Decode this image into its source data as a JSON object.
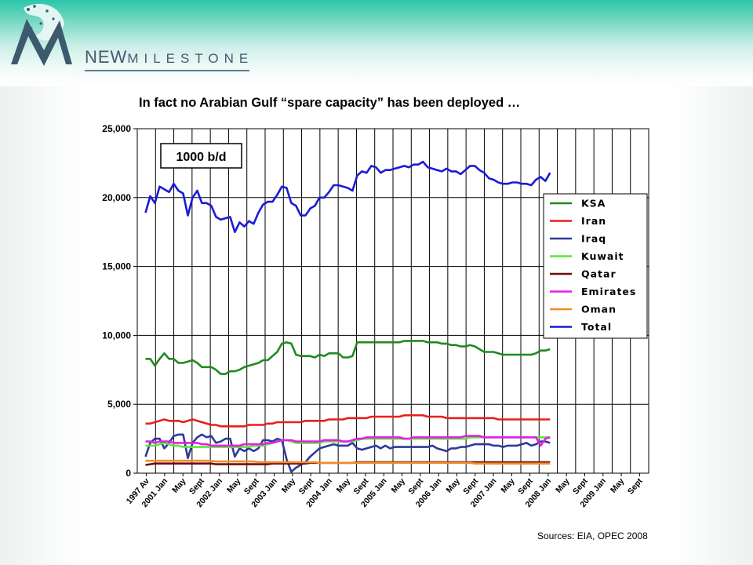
{
  "brand": {
    "part1": "NEW",
    "part2": "MILESTONE"
  },
  "source": "Sources: EIA, OPEC 2008",
  "chart_data": {
    "type": "line",
    "title": "In fact no Arabian Gulf “spare capacity” has been deployed …",
    "unit_label": "1000 b/d",
    "ylim": [
      0,
      25000
    ],
    "yticks": [
      "0",
      "5,000",
      "10,000",
      "15,000",
      "20,000",
      "25,000"
    ],
    "x_labels": [
      "1997 Av",
      "2001 Jan",
      "May",
      "Sept",
      "2002 Jan",
      "May",
      "Sept",
      "2003 Jan",
      "May",
      "Sept",
      "2004 Jan",
      "May",
      "Sept",
      "2005 Jan",
      "May",
      "Sept",
      "2006 Jan",
      "May",
      "Sept",
      "2007 Jan",
      "May",
      "Sept",
      "2008 Jan",
      "May",
      "Sept",
      "2009 Jan",
      "May",
      "Sept"
    ],
    "grid": "vertical and horizontal",
    "legend_position": "right",
    "series": [
      {
        "name": "KSA",
        "color": "#1f8a1f",
        "values": [
          8300,
          8300,
          7800,
          8300,
          8700,
          8300,
          8300,
          8000,
          8000,
          8100,
          8200,
          8000,
          7700,
          7700,
          7700,
          7500,
          7200,
          7200,
          7400,
          7400,
          7500,
          7700,
          7800,
          7900,
          8000,
          8200,
          8200,
          8500,
          8800,
          9400,
          9500,
          9400,
          8600,
          8500,
          8500,
          8500,
          8400,
          8600,
          8500,
          8700,
          8700,
          8700,
          8400,
          8400,
          8500,
          9500,
          9500,
          9500,
          9500,
          9500,
          9500,
          9500,
          9500,
          9500,
          9500,
          9600,
          9600,
          9600,
          9600,
          9600,
          9500,
          9500,
          9500,
          9400,
          9400,
          9300,
          9300,
          9200,
          9200,
          9300,
          9200,
          9000,
          8800,
          8800,
          8800,
          8700,
          8600,
          8600,
          8600,
          8600,
          8600,
          8600,
          8600,
          8700,
          8900,
          8900,
          9000
        ]
      },
      {
        "name": "Iran",
        "color": "#e81e1e",
        "values": [
          3600,
          3600,
          3700,
          3800,
          3900,
          3800,
          3800,
          3800,
          3700,
          3800,
          3900,
          3800,
          3700,
          3600,
          3500,
          3500,
          3400,
          3400,
          3400,
          3400,
          3400,
          3400,
          3500,
          3500,
          3500,
          3500,
          3600,
          3600,
          3700,
          3700,
          3700,
          3700,
          3700,
          3700,
          3800,
          3800,
          3800,
          3800,
          3800,
          3900,
          3900,
          3900,
          3900,
          4000,
          4000,
          4000,
          4000,
          4000,
          4100,
          4100,
          4100,
          4100,
          4100,
          4100,
          4100,
          4200,
          4200,
          4200,
          4200,
          4200,
          4100,
          4100,
          4100,
          4100,
          4000,
          4000,
          4000,
          4000,
          4000,
          4000,
          4000,
          4000,
          4000,
          4000,
          4000,
          3900,
          3900,
          3900,
          3900,
          3900,
          3900,
          3900,
          3900,
          3900,
          3900,
          3900,
          3900
        ]
      },
      {
        "name": "Iraq",
        "color": "#2e3a99",
        "values": [
          1200,
          2200,
          2500,
          2500,
          1800,
          2200,
          2700,
          2800,
          2800,
          1100,
          2200,
          2600,
          2800,
          2600,
          2700,
          2200,
          2300,
          2500,
          2500,
          1200,
          1800,
          1600,
          1800,
          1600,
          1800,
          2400,
          2400,
          2300,
          2500,
          2400,
          1000,
          100,
          400,
          600,
          800,
          1200,
          1500,
          1800,
          1900,
          2000,
          2100,
          2000,
          2000,
          2000,
          2200,
          1800,
          1700,
          1800,
          1900,
          2000,
          1800,
          2000,
          1800,
          1900,
          1900,
          1900,
          1900,
          1900,
          1900,
          1900,
          1900,
          2000,
          1800,
          1700,
          1600,
          1800,
          1800,
          1900,
          1900,
          2000,
          2100,
          2100,
          2100,
          2100,
          2000,
          2000,
          1900,
          2000,
          2000,
          2000,
          2100,
          2200,
          2000,
          2100,
          2300,
          2300,
          2200
        ]
      },
      {
        "name": "Kuwait",
        "color": "#5ce63c",
        "values": [
          2000,
          2000,
          2000,
          2100,
          2200,
          2100,
          2000,
          2000,
          1900,
          1900,
          1900,
          1900,
          1900,
          1900,
          1900,
          1900,
          1900,
          1900,
          1900,
          1900,
          1900,
          1900,
          1900,
          2000,
          2000,
          2000,
          2100,
          2200,
          2300,
          2400,
          2400,
          2300,
          2200,
          2200,
          2200,
          2200,
          2200,
          2200,
          2300,
          2300,
          2300,
          2300,
          2300,
          2300,
          2300,
          2400,
          2500,
          2500,
          2500,
          2500,
          2500,
          2500,
          2500,
          2500,
          2500,
          2500,
          2500,
          2500,
          2500,
          2500,
          2500,
          2500,
          2500,
          2500,
          2500,
          2500,
          2500,
          2500,
          2500,
          2600,
          2600,
          2600,
          2600,
          2600,
          2600,
          2600,
          2600,
          2600,
          2600,
          2600,
          2600,
          2600,
          2600,
          2600,
          2600,
          2600,
          2600
        ]
      },
      {
        "name": "Qatar",
        "color": "#6b0f0f",
        "values": [
          600,
          650,
          700,
          700,
          700,
          700,
          700,
          700,
          700,
          700,
          700,
          700,
          700,
          700,
          700,
          650,
          650,
          650,
          650,
          650,
          650,
          650,
          650,
          650,
          650,
          650,
          650,
          700,
          700,
          700,
          700,
          700,
          700,
          700,
          700,
          750,
          750,
          750,
          750,
          750,
          750,
          750,
          750,
          750,
          750,
          800,
          800,
          800,
          800,
          800,
          800,
          800,
          800,
          800,
          800,
          800,
          800,
          800,
          800,
          800,
          800,
          800,
          800,
          800,
          800,
          800,
          800,
          800,
          800,
          800,
          800,
          800,
          800,
          800,
          800,
          800,
          800,
          800,
          800,
          800,
          800,
          800,
          800,
          800,
          800,
          800,
          800
        ]
      },
      {
        "name": "Emirates",
        "color": "#e61ee6",
        "values": [
          2300,
          2300,
          2200,
          2300,
          2300,
          2300,
          2200,
          2200,
          2200,
          2200,
          2200,
          2200,
          2100,
          2100,
          2000,
          2000,
          2000,
          2000,
          2000,
          2000,
          2000,
          2100,
          2100,
          2100,
          2100,
          2100,
          2200,
          2200,
          2300,
          2400,
          2400,
          2400,
          2300,
          2300,
          2300,
          2300,
          2300,
          2300,
          2400,
          2400,
          2400,
          2400,
          2300,
          2300,
          2400,
          2500,
          2500,
          2600,
          2600,
          2600,
          2600,
          2600,
          2600,
          2600,
          2600,
          2500,
          2500,
          2600,
          2600,
          2600,
          2600,
          2600,
          2600,
          2600,
          2600,
          2600,
          2600,
          2600,
          2700,
          2700,
          2700,
          2700,
          2600,
          2600,
          2600,
          2600,
          2600,
          2600,
          2600,
          2600,
          2600,
          2600,
          2600,
          2600,
          2000,
          2500,
          2600
        ]
      },
      {
        "name": "Oman",
        "color": "#f28c28",
        "values": [
          900,
          900,
          900,
          900,
          900,
          900,
          900,
          900,
          900,
          900,
          900,
          900,
          900,
          900,
          900,
          850,
          850,
          850,
          850,
          850,
          850,
          850,
          850,
          850,
          800,
          800,
          800,
          800,
          800,
          800,
          800,
          800,
          800,
          800,
          800,
          800,
          800,
          750,
          750,
          750,
          750,
          750,
          750,
          750,
          750,
          750,
          750,
          750,
          750,
          750,
          750,
          750,
          750,
          750,
          750,
          750,
          750,
          750,
          750,
          750,
          750,
          750,
          750,
          750,
          750,
          750,
          750,
          750,
          750,
          750,
          700,
          700,
          700,
          700,
          700,
          700,
          700,
          700,
          700,
          700,
          700,
          700,
          700,
          700,
          700,
          700,
          700
        ]
      },
      {
        "name": "Total",
        "color": "#1a1ad9",
        "values": [
          18900,
          20100,
          19600,
          20800,
          20600,
          20400,
          21000,
          20500,
          20300,
          18700,
          20000,
          20500,
          19600,
          19600,
          19400,
          18600,
          18400,
          18500,
          18600,
          17500,
          18200,
          17900,
          18300,
          18100,
          18900,
          19500,
          19700,
          19700,
          20200,
          20800,
          20700,
          19600,
          19400,
          18700,
          18700,
          19200,
          19400,
          20000,
          20000,
          20400,
          20900,
          20900,
          20800,
          20700,
          20500,
          21600,
          21900,
          21800,
          22300,
          22200,
          21800,
          22000,
          22000,
          22100,
          22200,
          22300,
          22200,
          22400,
          22400,
          22600,
          22200,
          22100,
          22000,
          21900,
          22100,
          21900,
          21900,
          21700,
          22000,
          22300,
          22300,
          22000,
          21800,
          21400,
          21300,
          21100,
          21000,
          21000,
          21100,
          21100,
          21000,
          21000,
          20900,
          21300,
          21500,
          21200,
          21800
        ]
      }
    ]
  }
}
